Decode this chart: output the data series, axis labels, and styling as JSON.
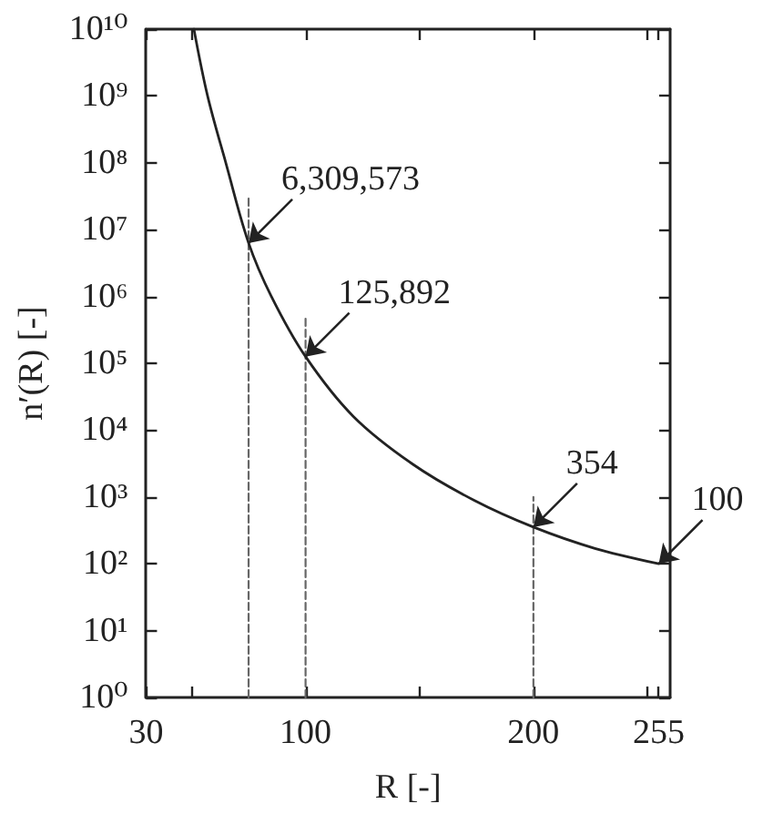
{
  "chart_data": {
    "type": "line",
    "xlabel": "R [-]",
    "ylabel": "n′(R) [-]",
    "log": "y",
    "marker": "none",
    "xlim": [
      30,
      260
    ],
    "xticks": [
      30,
      {
        "value": 50,
        "label": null
      },
      100,
      {
        "value": 150,
        "label": null
      },
      200,
      {
        "value": 250,
        "label": null
      },
      255
    ],
    "ylim": [
      1,
      10000000000
    ],
    "yticks": [
      {
        "value": 1,
        "label": "10⁰"
      },
      {
        "value": 10,
        "label": "10¹"
      },
      {
        "value": 100,
        "label": "10²"
      },
      {
        "value": 1000,
        "label": "10³"
      },
      {
        "value": 10000,
        "label": "10⁴"
      },
      {
        "value": 100000,
        "label": "10⁵"
      },
      {
        "value": 1000000,
        "label": "10⁶"
      },
      {
        "value": 10000000,
        "label": "10⁷"
      },
      {
        "value": 100000000,
        "label": "10⁸"
      },
      {
        "value": 1000000000,
        "label": "10⁹"
      },
      {
        "value": 10000000000,
        "label": "10¹⁰"
      }
    ],
    "series": [
      {
        "color": "#222222",
        "x": [
          51,
          57,
          65,
          75,
          85,
          100,
          121,
          147,
          174,
          200,
          227,
          255
        ],
        "values": [
          10000000000,
          1000000000,
          100000000,
          6309573,
          1000000,
          125892,
          16000,
          3100,
          890,
          354,
          170,
          100
        ]
      },
      {
        "color": "#666666",
        "line_style": "dashed",
        "x": [
          75,
          75
        ],
        "values": [
          1,
          30000000
        ]
      },
      {
        "color": "#666666",
        "line_style": "dashed",
        "x": [
          100,
          100
        ],
        "values": [
          1,
          500000
        ]
      },
      {
        "color": "#666666",
        "line_style": "dashed",
        "x": [
          200,
          200
        ],
        "values": [
          1,
          1000
        ]
      }
    ],
    "annotations": [
      {
        "text": "6,309,573",
        "x": 75,
        "y": 6309573
      },
      {
        "text": "125,892",
        "x": 100,
        "y": 125892
      },
      {
        "text": "354",
        "x": 200,
        "y": 354
      },
      {
        "text": "100",
        "x": 255,
        "y": 100
      }
    ]
  }
}
